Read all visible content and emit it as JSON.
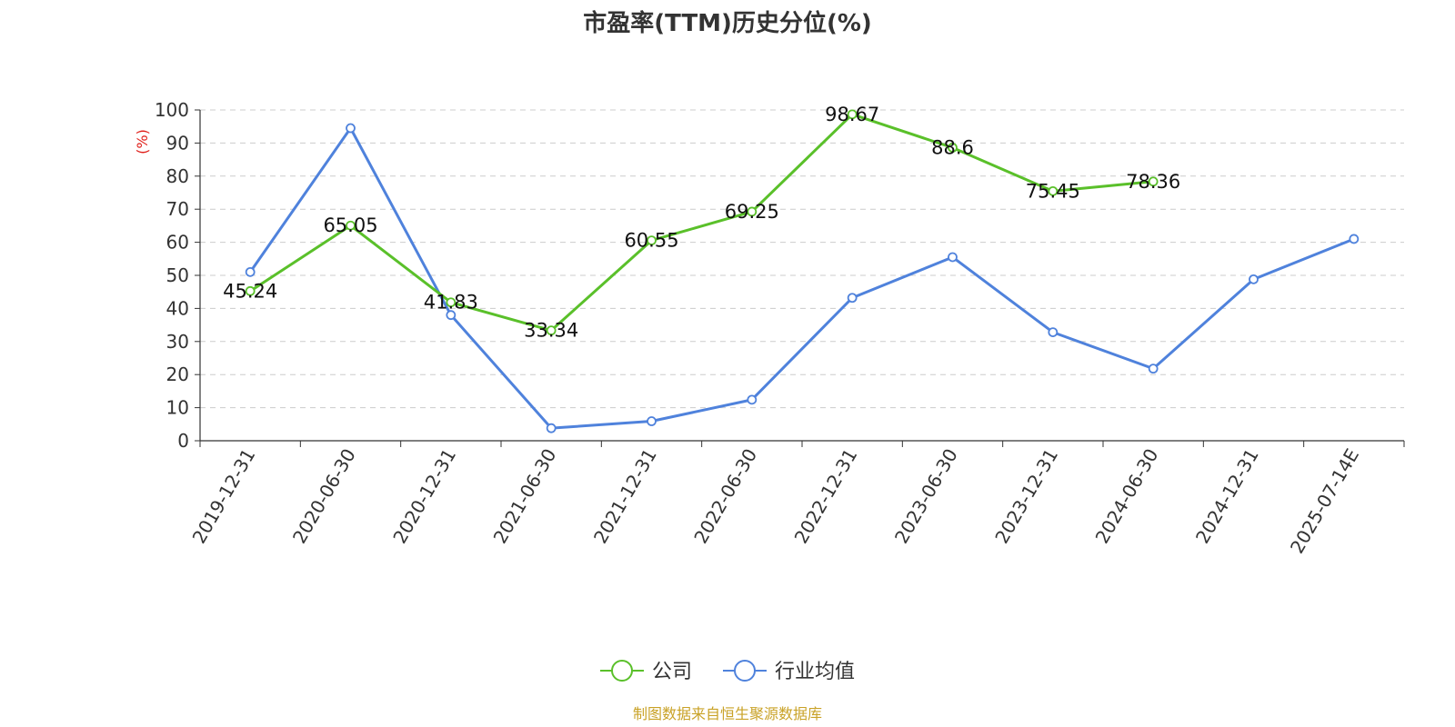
{
  "chart_data": {
    "type": "line",
    "title": "市盈率(TTM)历史分位(%)",
    "ylabel": "(%)",
    "ylim": [
      0,
      100
    ],
    "yticks": [
      0,
      10,
      20,
      30,
      40,
      50,
      60,
      70,
      80,
      90,
      100
    ],
    "grid": true,
    "legend_position": "bottom",
    "categories": [
      "2019-12-31",
      "2020-06-30",
      "2020-12-31",
      "2021-06-30",
      "2021-12-31",
      "2022-06-30",
      "2022-12-31",
      "2023-06-30",
      "2023-12-31",
      "2024-06-30",
      "2024-12-31",
      "2025-07-14E"
    ],
    "series": [
      {
        "name": "公司",
        "color": "#5ac02a",
        "values": [
          45.24,
          65.05,
          41.83,
          33.34,
          60.55,
          69.25,
          98.67,
          88.6,
          75.45,
          78.36,
          null,
          null
        ],
        "labels": [
          "45.24",
          "65.05",
          "41.83",
          "33.34",
          "60.55",
          "69.25",
          "98.67",
          "88.6",
          "75.45",
          "78.36",
          "",
          ""
        ]
      },
      {
        "name": "行业均值",
        "color": "#4f82dc",
        "values": [
          51,
          94.5,
          38,
          3.8,
          5.9,
          12.4,
          43.2,
          55.5,
          32.8,
          21.8,
          48.8,
          61
        ]
      }
    ],
    "source": "制图数据来自恒生聚源数据库",
    "source_color": "#c9a227",
    "ylabel_color": "#e0201b"
  }
}
